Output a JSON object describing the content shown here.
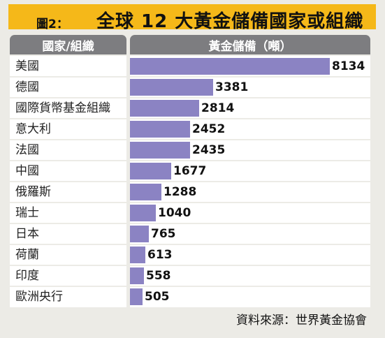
{
  "title": {
    "prefix": "圖2：",
    "text": "全球 12 大黃金儲備國家或組織"
  },
  "table": {
    "header_name": "國家/組織",
    "header_value": "黃金儲備（噸）"
  },
  "source": "資料來源：世界黃金協會",
  "colors": {
    "title_bg": "#f5b819",
    "header_bg": "#7d7d80",
    "bar": "#8b83c3"
  },
  "chart_data": {
    "type": "bar",
    "orientation": "horizontal",
    "title": "全球 12 大黃金儲備國家或組織",
    "xlabel": "黃金儲備（噸）",
    "ylabel": "國家/組織",
    "categories": [
      "美國",
      "德國",
      "國際貨幣基金組織",
      "意大利",
      "法國",
      "中國",
      "俄羅斯",
      "瑞士",
      "日本",
      "荷蘭",
      "印度",
      "歐洲央行"
    ],
    "values": [
      8134,
      3381,
      2814,
      2452,
      2435,
      1677,
      1288,
      1040,
      765,
      613,
      558,
      505
    ],
    "xlim": [
      0,
      8134
    ],
    "grid": false
  }
}
